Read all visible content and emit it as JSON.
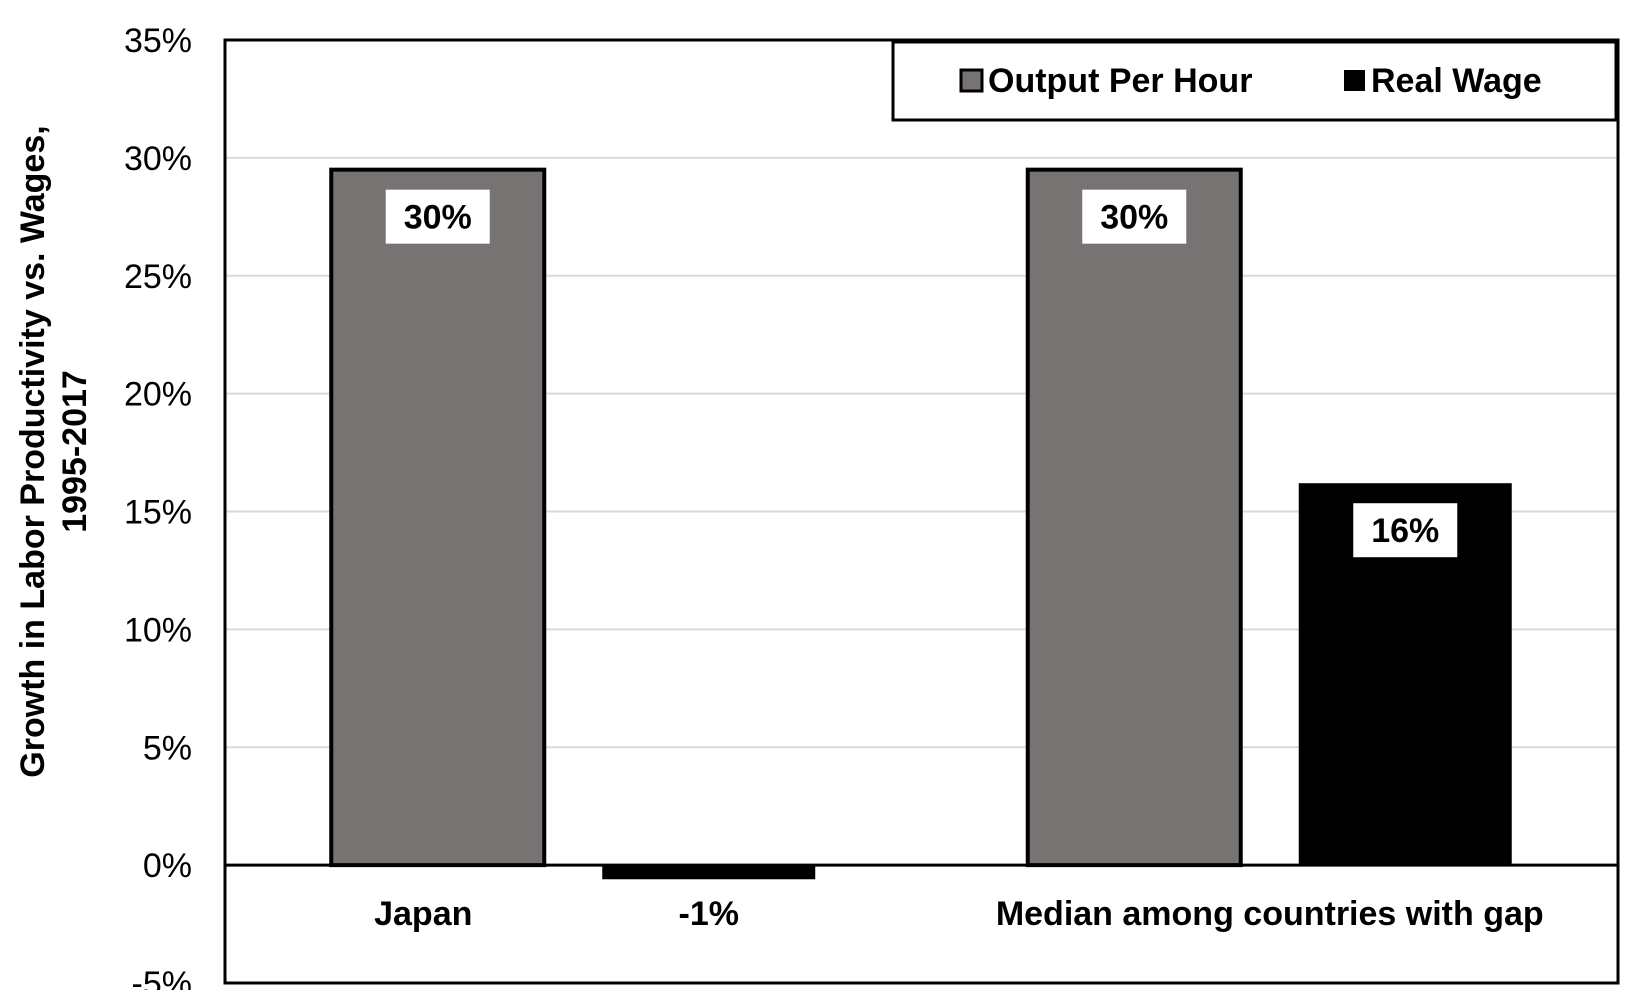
{
  "chart_data": {
    "type": "bar",
    "ylabel_lines": [
      "Growth in Labor Productivity vs. Wages,",
      "1995-2017"
    ],
    "ylim": [
      -0.05,
      0.35
    ],
    "yticks": [
      -0.05,
      0,
      0.05,
      0.1,
      0.15,
      0.2,
      0.25,
      0.3,
      0.35
    ],
    "ytick_labels": [
      "-5%",
      "0%",
      "5%",
      "10%",
      "15%",
      "20%",
      "25%",
      "30%",
      "35%"
    ],
    "grid": true,
    "legend_position": "top-right",
    "categories": [
      "Japan",
      "Median among countries with gap"
    ],
    "series": [
      {
        "name": "Output Per Hour",
        "color": "#767372",
        "values": [
          0.295,
          0.295
        ],
        "labels": [
          "30%",
          "30%"
        ]
      },
      {
        "name": "Real Wage",
        "color": "#000000",
        "values": [
          -0.006,
          0.162
        ],
        "labels": [
          "-1%",
          "16%"
        ]
      }
    ]
  }
}
